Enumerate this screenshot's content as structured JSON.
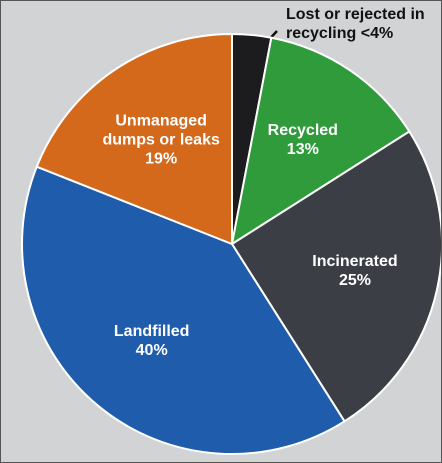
{
  "chart_data": {
    "type": "pie",
    "categories": [
      "Lost or rejected in recycling",
      "Recycled",
      "Incinerated",
      "Landfilled",
      "Unmanaged dumps or leaks"
    ],
    "values": [
      3,
      13,
      25,
      40,
      19
    ],
    "value_labels": [
      "<4%",
      "13%",
      "25%",
      "40%",
      "19%"
    ],
    "colors": [
      "#1c1c1e",
      "#2f9b3b",
      "#3b3e45",
      "#1f5cab",
      "#d4691c"
    ]
  }
}
